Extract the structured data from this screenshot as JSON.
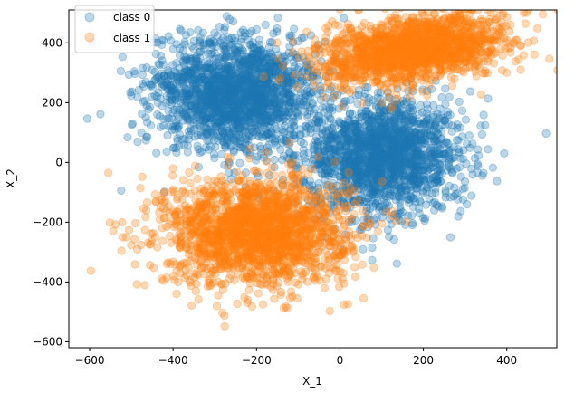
{
  "chart_data": {
    "type": "scatter",
    "title": "",
    "xlabel": "X_1",
    "ylabel": "X_2",
    "xlim": [
      -650,
      520
    ],
    "ylim": [
      -620,
      510
    ],
    "xticks": [
      -600,
      -400,
      -200,
      0,
      200,
      400
    ],
    "yticks": [
      -600,
      -400,
      -200,
      0,
      200,
      400
    ],
    "xtick_labels": [
      "−600",
      "−400",
      "−200",
      "0",
      "200",
      "400"
    ],
    "ytick_labels": [
      "−600",
      "−400",
      "−200",
      "0",
      "200",
      "400"
    ],
    "grid": false,
    "legend": {
      "placement": "upper-left",
      "entries": [
        "class 0",
        "class 1"
      ]
    },
    "series": [
      {
        "name": "class 0",
        "color": "#1f77b4",
        "alpha": 0.3,
        "clusters": [
          {
            "center": [
              -250,
              230
            ],
            "spread": [
              95,
              95
            ],
            "rotation_deg": -20,
            "n": 1800
          },
          {
            "center": [
              100,
              20
            ],
            "spread": [
              95,
              95
            ],
            "rotation_deg": -20,
            "n": 1800
          }
        ]
      },
      {
        "name": "class 1",
        "color": "#ff7f0e",
        "alpha": 0.3,
        "clusters": [
          {
            "center": [
              -200,
              -230
            ],
            "spread": [
              110,
              90
            ],
            "rotation_deg": 0,
            "n": 1900
          },
          {
            "center": [
              180,
              380
            ],
            "spread": [
              115,
              55
            ],
            "rotation_deg": 15,
            "n": 1600
          }
        ]
      }
    ]
  }
}
